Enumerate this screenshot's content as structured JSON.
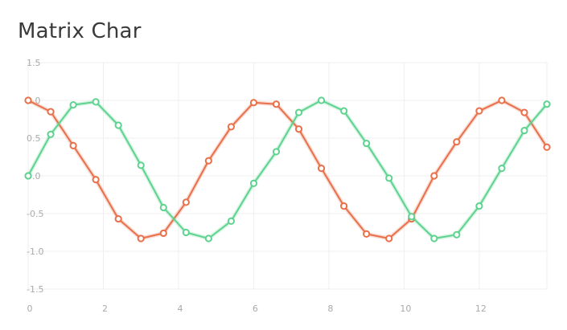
{
  "title": "Matrix Char",
  "chart_data": {
    "type": "line",
    "title": "Matrix Char",
    "xlabel": "",
    "ylabel": "",
    "xlim": [
      0,
      13.8
    ],
    "ylim": [
      -1.5,
      1.5
    ],
    "y_ticks": [
      "1.5",
      "1.0",
      "0.5",
      "0.0",
      "-0.5",
      "-1.0",
      "-1.5"
    ],
    "y_tick_values": [
      1.5,
      1.0,
      0.5,
      0.0,
      -0.5,
      -1.0,
      -1.5
    ],
    "x_ticks": [
      "0",
      "2",
      "4",
      "6",
      "8",
      "10",
      "12"
    ],
    "x_tick_values": [
      0,
      2,
      4,
      6,
      8,
      10,
      12
    ],
    "grid": true,
    "series": [
      {
        "color": "#e8704a",
        "x": [
          0,
          0.6,
          1.2,
          1.8,
          2.4,
          3.0,
          3.6,
          4.2,
          4.8,
          5.4,
          6.0,
          6.6,
          7.2,
          7.8,
          8.4,
          9.0,
          9.6,
          10.2,
          10.8,
          11.4,
          12.0,
          12.6,
          13.2,
          13.8
        ],
        "y": [
          1.0,
          0.85,
          0.4,
          -0.05,
          -0.57,
          -0.83,
          -0.76,
          -0.35,
          0.2,
          0.65,
          0.97,
          0.95,
          0.62,
          0.1,
          -0.4,
          -0.77,
          -0.83,
          -0.57,
          -0.0,
          0.45,
          0.86,
          1.0,
          0.84,
          0.38
        ]
      },
      {
        "color": "#5ed38f",
        "x": [
          0,
          0.6,
          1.2,
          1.8,
          2.4,
          3.0,
          3.6,
          4.2,
          4.8,
          5.4,
          6.0,
          6.6,
          7.2,
          7.8,
          8.4,
          9.0,
          9.6,
          10.2,
          10.8,
          11.4,
          12.0,
          12.6,
          13.2,
          13.8
        ],
        "y": [
          0.0,
          0.55,
          0.94,
          0.98,
          0.67,
          0.14,
          -0.42,
          -0.75,
          -0.83,
          -0.6,
          -0.1,
          0.32,
          0.84,
          1.0,
          0.86,
          0.43,
          -0.03,
          -0.54,
          -0.83,
          -0.78,
          -0.4,
          0.1,
          0.6,
          0.95
        ]
      }
    ]
  }
}
